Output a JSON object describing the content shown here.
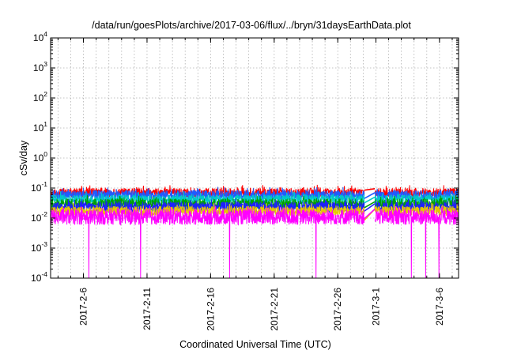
{
  "chart_data": {
    "type": "line",
    "title": "/data/run/goesPlots/archive/2017-03-06/flux/../bryn/31daysEarthData.plot",
    "xlabel": "Coordinated Universal Time (UTC)",
    "ylabel": "cSv/day",
    "y_scale": "log",
    "ylim": [
      0.0001,
      10000
    ],
    "xlim": [
      "2017-02-03T10:00",
      "2017-03-07T12:00"
    ],
    "grid": true,
    "x_ticks": [
      "2017-2-6",
      "2017-2-11",
      "2017-2-16",
      "2017-2-21",
      "2017-2-26",
      "2017-3-1",
      "2017-3-6"
    ],
    "y_ticks": [
      {
        "base": "10",
        "exp": "-4",
        "value": 0.0001
      },
      {
        "base": "10",
        "exp": "-3",
        "value": 0.001
      },
      {
        "base": "10",
        "exp": "-2",
        "value": 0.01
      },
      {
        "base": "10",
        "exp": "-1",
        "value": 0.1
      },
      {
        "base": "10",
        "exp": "0",
        "value": 1
      },
      {
        "base": "10",
        "exp": "1",
        "value": 10
      },
      {
        "base": "10",
        "exp": "2",
        "value": 100
      },
      {
        "base": "10",
        "exp": "3",
        "value": 1000
      },
      {
        "base": "10",
        "exp": "4",
        "value": 10000
      }
    ],
    "data_gap": [
      "2017-02-28T02:00",
      "2017-02-28T22:00"
    ],
    "series": [
      {
        "color": "#ff0000",
        "typical_range": [
          0.05,
          0.1
        ],
        "gap_ends": [
          0.085,
          0.095
        ]
      },
      {
        "color": "#1f5bff",
        "typical_range": [
          0.04,
          0.085
        ],
        "gap_ends": [
          0.045,
          0.07
        ]
      },
      {
        "color": "#00c8c8",
        "typical_range": [
          0.03,
          0.06
        ],
        "gap_ends": [
          0.032,
          0.05
        ]
      },
      {
        "color": "#00a000",
        "typical_range": [
          0.02,
          0.045
        ],
        "gap_ends": [
          0.022,
          0.035
        ]
      },
      {
        "color": "#1f1fff",
        "typical_range": [
          0.015,
          0.035
        ],
        "gap_ends": [
          0.017,
          0.03
        ]
      },
      {
        "color": "#e6c800",
        "typical_range": [
          0.012,
          0.025
        ],
        "gap_ends": [
          0.0085,
          0.02
        ]
      },
      {
        "color": "#ff00ff",
        "typical_range": [
          0.006,
          0.02
        ],
        "gap_ends": [
          0.0095,
          0.02
        ],
        "dropouts": [
          "2017-02-06T10:00",
          "2017-02-10T12:00",
          "2017-02-17T12:00",
          "2017-02-24T07:00",
          "2017-03-03T19:00",
          "2017-03-04T22:00",
          "2017-03-05T23:00"
        ]
      }
    ]
  }
}
